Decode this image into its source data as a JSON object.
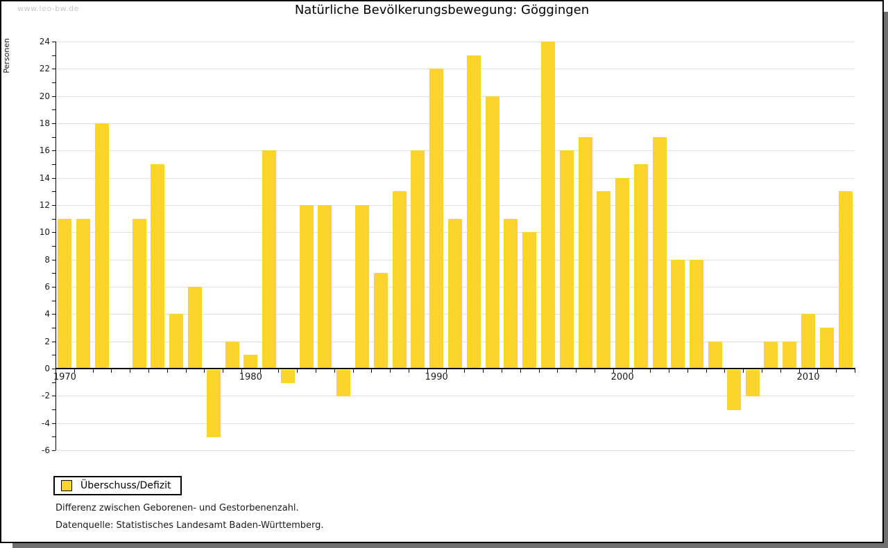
{
  "watermark": "www.leo-bw.de",
  "chart_data": {
    "type": "bar",
    "title": "Natürliche Bevölkerungsbewegung: Göggingen",
    "ylabel": "Personen",
    "xlabel": "",
    "ylim": [
      -6,
      24
    ],
    "grid": true,
    "bar_color": "#fcd42c",
    "categories": [
      1970,
      1971,
      1972,
      1973,
      1974,
      1975,
      1976,
      1977,
      1978,
      1979,
      1980,
      1981,
      1982,
      1983,
      1984,
      1985,
      1986,
      1987,
      1988,
      1989,
      1990,
      1991,
      1992,
      1993,
      1994,
      1995,
      1996,
      1997,
      1998,
      1999,
      2000,
      2001,
      2002,
      2003,
      2004,
      2005,
      2006,
      2007,
      2008,
      2009,
      2010,
      2011,
      2012
    ],
    "values": [
      11,
      11,
      18,
      0,
      11,
      15,
      4,
      6,
      -5,
      2,
      1,
      16,
      -1,
      12,
      12,
      -2,
      12,
      7,
      13,
      16,
      22,
      11,
      23,
      20,
      11,
      10,
      24,
      16,
      17,
      13,
      14,
      15,
      17,
      8,
      8,
      2,
      -3,
      -2,
      2,
      2,
      4,
      3,
      13
    ],
    "ytick_labels": [
      "24",
      "22",
      "20",
      "18",
      "16",
      "14",
      "12",
      "10",
      "8",
      "6",
      "4",
      "2",
      "0",
      "-2",
      "-4",
      "-6"
    ],
    "xtick_labels": [
      "1970",
      "1980",
      "1990",
      "2000",
      "2010"
    ],
    "xtick_years": [
      1970,
      1980,
      1990,
      2000,
      2010
    ],
    "legend_position": "bottom-left",
    "series_name": "Überschuss/Defizit"
  },
  "legend": {
    "label": "Überschuss/Defizit"
  },
  "footnotes": {
    "line1": "Differenz zwischen Geborenen- und Gestorbenenzahl.",
    "line2": "Datenquelle: Statistisches Landesamt Baden-Württemberg."
  }
}
